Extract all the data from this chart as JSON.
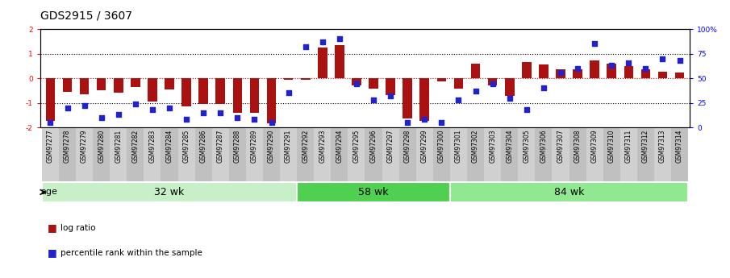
{
  "title": "GDS2915 / 3607",
  "samples": [
    "GSM97277",
    "GSM97278",
    "GSM97279",
    "GSM97280",
    "GSM97281",
    "GSM97282",
    "GSM97283",
    "GSM97284",
    "GSM97285",
    "GSM97286",
    "GSM97287",
    "GSM97288",
    "GSM97289",
    "GSM97290",
    "GSM97291",
    "GSM97292",
    "GSM97293",
    "GSM97294",
    "GSM97295",
    "GSM97296",
    "GSM97297",
    "GSM97298",
    "GSM97299",
    "GSM97300",
    "GSM97301",
    "GSM97302",
    "GSM97303",
    "GSM97304",
    "GSM97305",
    "GSM97306",
    "GSM97307",
    "GSM97308",
    "GSM97309",
    "GSM97310",
    "GSM97311",
    "GSM97312",
    "GSM97313",
    "GSM97314"
  ],
  "log_ratio": [
    -1.75,
    -0.55,
    -0.65,
    -0.5,
    -0.6,
    -0.35,
    -0.95,
    -0.45,
    -1.15,
    -1.05,
    -1.05,
    -1.4,
    -1.4,
    -1.85,
    -0.05,
    -0.05,
    1.25,
    1.35,
    -0.28,
    -0.42,
    -0.68,
    -1.65,
    -1.75,
    -0.12,
    -0.42,
    0.58,
    -0.28,
    -0.72,
    0.65,
    0.55,
    0.38,
    0.35,
    0.72,
    0.58,
    0.5,
    0.38,
    0.28,
    0.25
  ],
  "percentile": [
    5,
    20,
    22,
    10,
    13,
    24,
    18,
    20,
    8,
    15,
    15,
    10,
    8,
    5,
    35,
    82,
    87,
    90,
    44,
    28,
    32,
    5,
    8,
    5,
    28,
    37,
    44,
    30,
    18,
    40,
    56,
    60,
    85,
    63,
    66,
    60,
    70,
    68
  ],
  "groups": [
    {
      "label": "32 wk",
      "start": 0,
      "end": 15,
      "color": "#c8f0c8"
    },
    {
      "label": "58 wk",
      "start": 15,
      "end": 24,
      "color": "#50d050"
    },
    {
      "label": "84 wk",
      "start": 24,
      "end": 38,
      "color": "#90e890"
    }
  ],
  "ylim": [
    -2,
    2
  ],
  "yticks_left": [
    -2,
    -1,
    0,
    1,
    2
  ],
  "yticks_right": [
    0,
    25,
    50,
    75,
    100
  ],
  "ytick_labels_right": [
    "0",
    "25",
    "50",
    "75",
    "100%"
  ],
  "hlines_dotted": [
    -1,
    0,
    1
  ],
  "bar_color": "#aa1111",
  "dot_color": "#2222cc",
  "bar_width": 0.55,
  "dot_size": 22,
  "age_label": "age",
  "legend_bar_label": "log ratio",
  "legend_dot_label": "percentile rank within the sample",
  "plot_bg_color": "#ffffff",
  "tick_bg_color": "#d8d8d8",
  "title_fontsize": 10,
  "tick_fontsize": 5.5,
  "group_fontsize": 9
}
